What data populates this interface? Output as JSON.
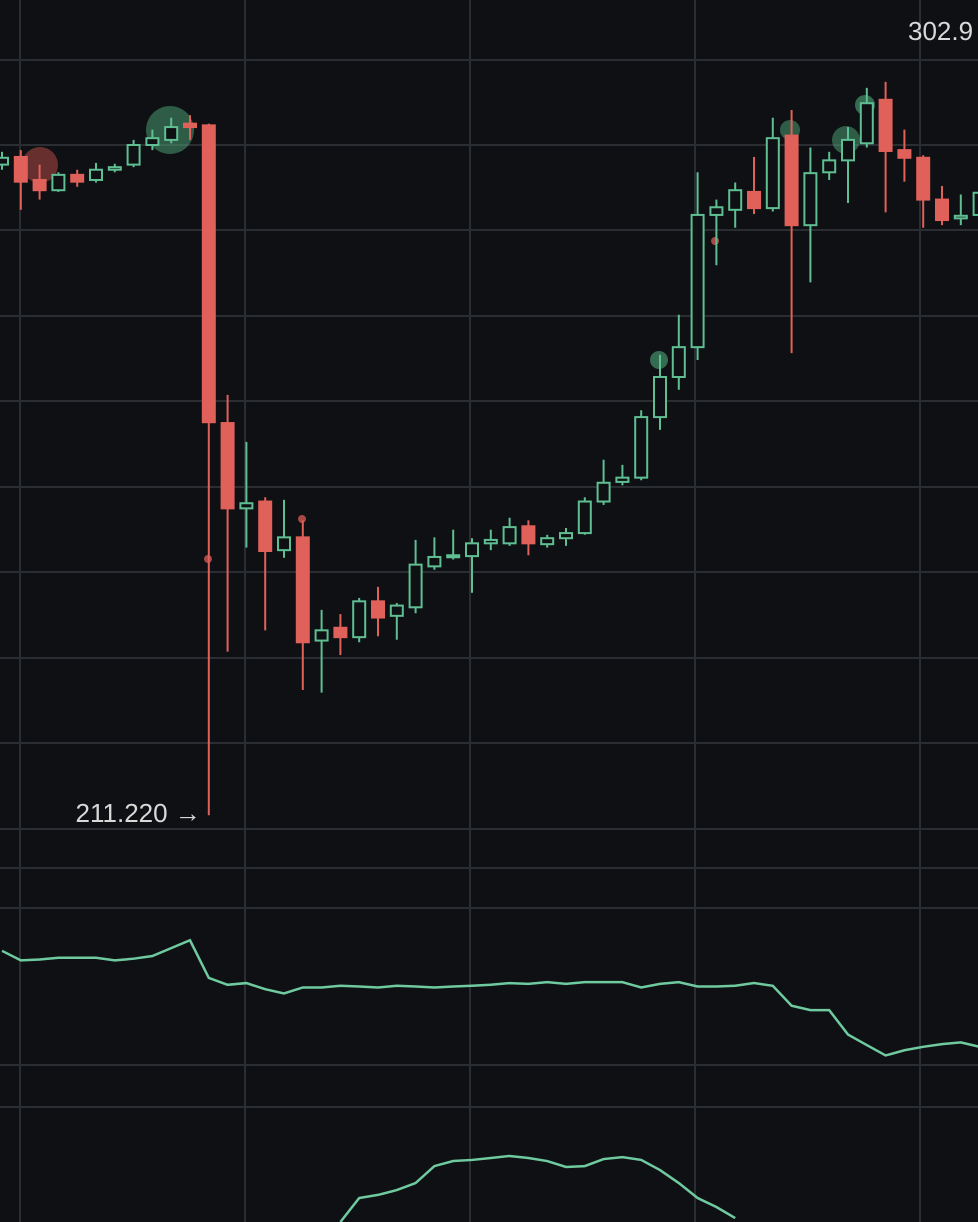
{
  "chart_data": {
    "type": "candlestick",
    "annotations": [
      {
        "text": "302.9"
      },
      {
        "text": "211.220 →"
      }
    ],
    "ylim": [
      204.8,
      306.8
    ],
    "up_color": "#5fbf93",
    "down_color": "#e0605a",
    "series": {
      "open": [
        287.5,
        288.4,
        285.7,
        284.5,
        286.3,
        285.7,
        286.9,
        287.5,
        289.8,
        290.4,
        292.3,
        292.1,
        257.2,
        247.2,
        248.0,
        242.3,
        243.8,
        231.7,
        233.2,
        232.1,
        236.3,
        234.6,
        235.6,
        240.4,
        241.5,
        241.6,
        243.1,
        243.1,
        245.1,
        243.0,
        243.7,
        244.3,
        248.0,
        250.3,
        250.8,
        257.9,
        262.6,
        266.1,
        281.6,
        282.2,
        284.3,
        282.4,
        290.9,
        280.4,
        286.6,
        288.0,
        290.0,
        295.1,
        289.2,
        288.3,
        283.4,
        281.2,
        281.6
      ],
      "high": [
        289.0,
        289.2,
        287.5,
        286.6,
        286.9,
        287.7,
        287.6,
        290.4,
        291.6,
        293.0,
        293.3,
        292.3,
        260.5,
        255.0,
        248.5,
        248.2,
        245.8,
        235.3,
        234.8,
        236.7,
        238.0,
        236.1,
        243.5,
        243.8,
        244.7,
        243.7,
        244.7,
        246.1,
        245.8,
        244.1,
        244.9,
        248.5,
        252.9,
        252.3,
        258.7,
        265.2,
        269.9,
        286.6,
        283.4,
        285.4,
        288.4,
        293.0,
        293.9,
        289.5,
        289.0,
        291.9,
        296.5,
        297.2,
        291.6,
        288.6,
        285.0,
        284.0,
        285.1
      ],
      "low": [
        286.9,
        282.2,
        283.4,
        284.3,
        284.9,
        285.4,
        286.6,
        287.2,
        289.2,
        290.0,
        290.4,
        211.22,
        230.4,
        242.6,
        232.9,
        241.4,
        225.9,
        225.6,
        230.0,
        231.5,
        232.2,
        231.8,
        234.9,
        240.0,
        241.2,
        237.3,
        242.3,
        242.8,
        241.7,
        242.6,
        242.8,
        244.1,
        247.6,
        249.9,
        250.5,
        256.4,
        261.1,
        264.6,
        275.7,
        280.1,
        281.7,
        282.0,
        265.4,
        273.7,
        285.7,
        283.0,
        289.5,
        281.9,
        285.5,
        280.1,
        280.4,
        280.4,
        278.7
      ],
      "close": [
        288.3,
        285.5,
        284.5,
        286.3,
        285.5,
        286.9,
        287.2,
        289.8,
        290.6,
        291.9,
        291.9,
        257.3,
        247.2,
        247.8,
        242.2,
        243.8,
        231.5,
        232.9,
        232.1,
        236.3,
        234.4,
        235.8,
        240.6,
        241.5,
        241.7,
        243.1,
        243.5,
        245.0,
        243.1,
        243.7,
        244.3,
        248.0,
        250.2,
        250.8,
        257.9,
        262.6,
        266.1,
        281.6,
        282.5,
        284.5,
        282.4,
        290.6,
        280.4,
        286.5,
        288.0,
        290.4,
        294.7,
        289.1,
        288.3,
        283.4,
        281.0,
        281.5,
        284.2
      ]
    },
    "indicators": [
      {
        "color": "#6fcaa0",
        "ylim": [
          0,
          100
        ],
        "values": [
          77.7,
          72.7,
          73.2,
          74.1,
          74.1,
          74.1,
          72.7,
          73.6,
          75.0,
          79.1,
          83.2,
          63.6,
          60.0,
          60.9,
          57.7,
          55.5,
          58.6,
          58.6,
          59.5,
          59.1,
          58.6,
          59.5,
          59.1,
          58.6,
          59.1,
          59.5,
          60.0,
          60.9,
          60.5,
          61.4,
          60.5,
          61.4,
          61.4,
          61.4,
          58.6,
          60.5,
          61.4,
          59.1,
          59.1,
          59.5,
          60.9,
          59.5,
          49.1,
          46.8,
          46.8,
          34.1,
          28.6,
          23.2,
          25.9,
          27.7,
          29.1,
          30.0,
          27.7
        ]
      },
      {
        "color": "#6fcaa0",
        "ylim": [
          0,
          100
        ],
        "values": [
          null,
          null,
          null,
          null,
          null,
          null,
          null,
          null,
          null,
          null,
          null,
          null,
          null,
          null,
          null,
          null,
          null,
          null,
          49.1,
          60.0,
          61.4,
          63.6,
          66.8,
          74.5,
          76.8,
          77.3,
          78.2,
          79.1,
          78.2,
          76.8,
          74.1,
          74.5,
          77.7,
          78.6,
          77.3,
          72.7,
          66.8,
          60.0,
          55.9,
          50.9,
          null,
          null,
          null,
          null,
          null,
          null,
          null,
          null,
          null,
          null,
          null,
          null,
          null
        ]
      }
    ]
  }
}
